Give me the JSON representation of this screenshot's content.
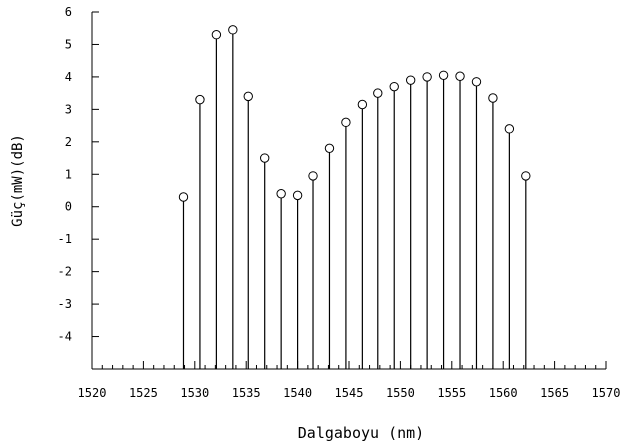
{
  "chart_data": {
    "type": "stem",
    "xlabel": "Dalgaboyu (nm)",
    "ylabel": "Güç(mW)(dB)",
    "xlim": [
      1520,
      1570
    ],
    "ylim": [
      -5,
      6
    ],
    "x_ticks": [
      1520,
      1525,
      1530,
      1535,
      1540,
      1545,
      1550,
      1555,
      1560,
      1565,
      1570
    ],
    "y_ticks": [
      -4,
      -3,
      -2,
      -1,
      0,
      1,
      2,
      3,
      4,
      5,
      6
    ],
    "x_tick_labels": [
      "1520",
      "1525",
      "1530",
      "1535",
      "1540",
      "1545",
      "1550",
      "1555",
      "1560",
      "1565",
      "1570"
    ],
    "y_tick_labels": [
      "-4",
      "-3",
      "-2",
      "-1",
      "0",
      "1",
      "2",
      "3",
      "4",
      "5",
      "6"
    ],
    "baseline": -5,
    "grid": false,
    "series": [
      {
        "x": [
          1528.9,
          1530.5,
          1532.1,
          1533.7,
          1535.2,
          1536.8,
          1538.4,
          1540.0,
          1541.5,
          1543.1,
          1544.7,
          1546.3,
          1547.8,
          1549.4,
          1551.0,
          1552.6,
          1554.2,
          1555.8,
          1557.4,
          1559.0,
          1560.6,
          1562.2
        ],
        "y": [
          0.3,
          3.3,
          5.3,
          5.45,
          3.4,
          1.5,
          0.4,
          0.35,
          0.95,
          1.8,
          2.6,
          3.15,
          3.5,
          3.7,
          3.9,
          4.0,
          4.05,
          4.02,
          3.85,
          3.35,
          2.4,
          0.95
        ]
      }
    ],
    "colors": {
      "stem": "#000000",
      "marker_fill": "#ffffff",
      "axis": "#000000"
    }
  }
}
